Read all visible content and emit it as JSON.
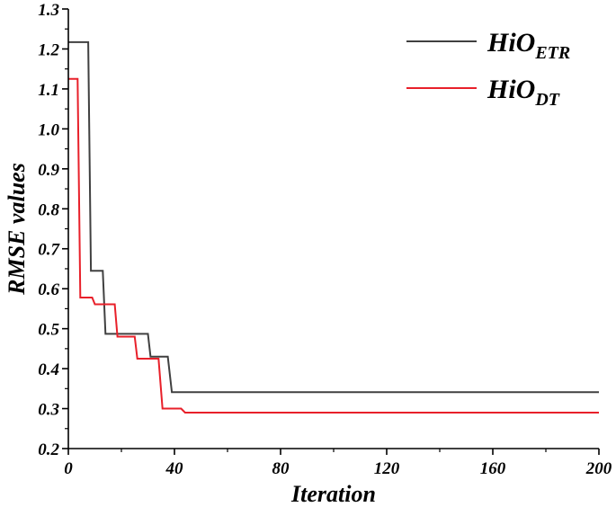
{
  "chart_data": {
    "type": "line",
    "title": "",
    "xlabel": "Iteration",
    "ylabel": "RMSE values",
    "xlim": [
      0,
      200
    ],
    "ylim": [
      0.2,
      1.3
    ],
    "xticks": [
      0,
      40,
      80,
      120,
      160,
      200
    ],
    "xtick_labels": [
      "0",
      "40",
      "80",
      "120",
      "160",
      "200"
    ],
    "yticks": [
      0.2,
      0.3,
      0.4,
      0.5,
      0.6,
      0.7,
      0.8,
      0.9,
      1.0,
      1.1,
      1.2,
      1.3
    ],
    "ytick_labels": [
      "0.2",
      "0.3",
      "0.4",
      "0.5",
      "0.6",
      "0.7",
      "0.8",
      "0.9",
      "1.0",
      "1.1",
      "1.2",
      "1.3"
    ],
    "grid": false,
    "legend_position": "top-right",
    "series": [
      {
        "name": "HiO",
        "name_subscript": "ETR",
        "color": "#404040",
        "points": [
          [
            0,
            1.217
          ],
          [
            7.5,
            1.217
          ],
          [
            8.5,
            0.645
          ],
          [
            13,
            0.645
          ],
          [
            14,
            0.487
          ],
          [
            30,
            0.487
          ],
          [
            31,
            0.43
          ],
          [
            37.5,
            0.43
          ],
          [
            39,
            0.341
          ],
          [
            200,
            0.341
          ]
        ]
      },
      {
        "name": "HiO",
        "name_subscript": "DT",
        "color": "#e8202a",
        "points": [
          [
            0,
            1.125
          ],
          [
            3.5,
            1.125
          ],
          [
            4.5,
            0.578
          ],
          [
            9,
            0.578
          ],
          [
            10,
            0.561
          ],
          [
            17.5,
            0.561
          ],
          [
            18.5,
            0.48
          ],
          [
            25,
            0.48
          ],
          [
            26,
            0.425
          ],
          [
            34,
            0.425
          ],
          [
            35.5,
            0.3
          ],
          [
            42.5,
            0.3
          ],
          [
            44,
            0.29
          ],
          [
            200,
            0.29
          ]
        ]
      }
    ]
  }
}
